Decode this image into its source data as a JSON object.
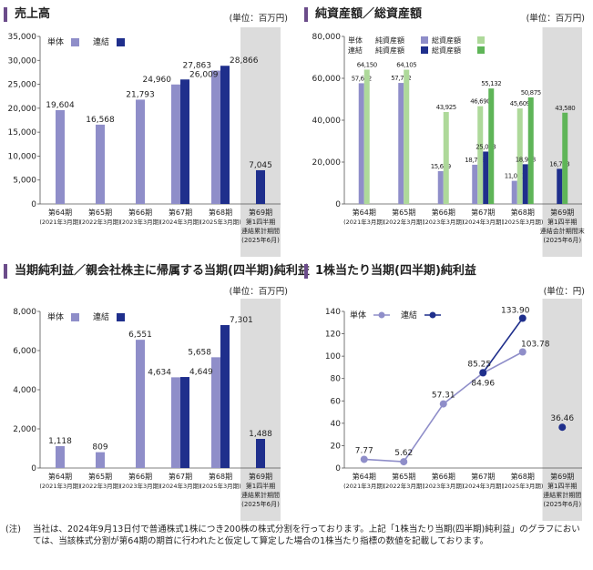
{
  "colors": {
    "single": "#8f8ec9",
    "consol": "#1f2f8c",
    "net_light": "#aed99a",
    "total_green": "#5fb558",
    "forecast_bg": "#dcdcdc",
    "title_bar": "#6b4c8a"
  },
  "unit_label": "(単位：百万円)",
  "unit_label_yen": "(単位：円)",
  "period_labels": [
    {
      "l1": "第64期",
      "l2": "(2021年3月期)"
    },
    {
      "l1": "第65期",
      "l2": "(2022年3月期)"
    },
    {
      "l1": "第66期",
      "l2": "(2023年3月期)"
    },
    {
      "l1": "第67期",
      "l2": "(2024年3月期)"
    },
    {
      "l1": "第68期",
      "l2": "(2025年3月期)"
    }
  ],
  "chart_data": [
    {
      "type": "bar",
      "title": "売上高",
      "unit": "(単位：百万円)",
      "legend": [
        "単体",
        "連結"
      ],
      "ylim": [
        0,
        35000
      ],
      "yticks": [
        "35,000",
        "30,000",
        "25,000",
        "20,000",
        "15,000",
        "10,000",
        "5,000",
        "0"
      ],
      "series": [
        {
          "name": "単体",
          "values": [
            19604,
            16568,
            21793,
            24960,
            27863,
            null
          ],
          "labels": [
            "19,604",
            "16,568",
            "21,793",
            "24,960",
            "27,863",
            ""
          ]
        },
        {
          "name": "連結",
          "values": [
            null,
            null,
            null,
            26009,
            28866,
            7045
          ],
          "labels": [
            "",
            "",
            "",
            "26,009",
            "28,866",
            "7,045"
          ]
        }
      ],
      "last_category": [
        "第69期",
        "第1四半期",
        "連結累計期間",
        "(2025年6月)"
      ]
    },
    {
      "type": "bar",
      "title": "純資産額／総資産額",
      "unit": "(単位：百万円)",
      "legend": [
        {
          "group": "単体",
          "net": "純資産額",
          "total": "総資産額"
        },
        {
          "group": "連結",
          "net": "純資産額",
          "total": "総資産額"
        }
      ],
      "ylim": [
        0,
        80000
      ],
      "yticks": [
        "80,000",
        "60,000",
        "40,000",
        "20,000",
        "0"
      ],
      "series": [
        {
          "name": "単体 純資産額",
          "values": [
            57652,
            57792,
            15669,
            18738,
            11050,
            null
          ],
          "labels": [
            "57,652",
            "57,792",
            "15,669",
            "18,738",
            "11,050",
            ""
          ]
        },
        {
          "name": "単体 総資産額",
          "values": [
            64150,
            64105,
            43925,
            46690,
            45609,
            null
          ],
          "labels": [
            "64,150",
            "64,105",
            "43,925",
            "46,690",
            "45,609",
            ""
          ]
        },
        {
          "name": "連結 純資産額",
          "values": [
            null,
            null,
            null,
            25013,
            18968,
            16783
          ],
          "labels": [
            "",
            "",
            "",
            "25,013",
            "18,968",
            "16,783"
          ]
        },
        {
          "name": "連結 総資産額",
          "values": [
            null,
            null,
            null,
            55132,
            50875,
            43580
          ],
          "labels": [
            "",
            "",
            "",
            "55,132",
            "50,875",
            "43,580"
          ]
        }
      ],
      "last_category": [
        "第69期",
        "第1四半期",
        "連結会計期間末",
        "(2025年6月)"
      ]
    },
    {
      "type": "bar",
      "title": "当期純利益／親会社株主に帰属する当期(四半期)純利益",
      "unit": "(単位：百万円)",
      "legend": [
        "単体",
        "連結"
      ],
      "ylim": [
        0,
        8000
      ],
      "yticks": [
        "8,000",
        "6,000",
        "4,000",
        "2,000",
        "0"
      ],
      "series": [
        {
          "name": "単体",
          "values": [
            1118,
            809,
            6551,
            4634,
            5658,
            null
          ],
          "labels": [
            "1,118",
            "809",
            "6,551",
            "4,634",
            "5,658",
            ""
          ]
        },
        {
          "name": "連結",
          "values": [
            null,
            null,
            null,
            4649,
            7301,
            1488
          ],
          "labels": [
            "",
            "",
            "",
            "4,649",
            "7,301",
            "1,488"
          ]
        }
      ],
      "last_category": [
        "第69期",
        "第1四半期",
        "連結累計期間",
        "(2025年6月)"
      ]
    },
    {
      "type": "line",
      "title": "1株当たり当期(四半期)純利益",
      "unit": "(単位：円)",
      "legend": [
        "単体",
        "連結"
      ],
      "ylim": [
        0,
        140
      ],
      "yticks": [
        "140",
        "120",
        "100",
        "80",
        "60",
        "40",
        "20",
        "0"
      ],
      "series": [
        {
          "name": "単体",
          "values": [
            7.77,
            5.62,
            57.31,
            84.96,
            103.78,
            null
          ],
          "labels": [
            "7.77",
            "5.62",
            "57.31",
            "84.96",
            "103.78",
            ""
          ]
        },
        {
          "name": "連結",
          "values": [
            null,
            null,
            null,
            85.25,
            133.9,
            36.46
          ],
          "labels": [
            "",
            "",
            "",
            "85.25",
            "133.90",
            "36.46"
          ]
        }
      ],
      "last_category": [
        "第69期",
        "第1四半期",
        "連結累計期間",
        "(2025年6月)"
      ]
    }
  ],
  "footnote": {
    "label": "(注)",
    "text": "当社は、2024年9月13日付で普通株式1株につき200株の株式分割を行っております。上記「1株当たり当期(四半期)純利益」のグラフにおいては、当該株式分割が第64期の期首に行われたと仮定して算定した場合の1株当たり指標の数値を記載しております。"
  }
}
